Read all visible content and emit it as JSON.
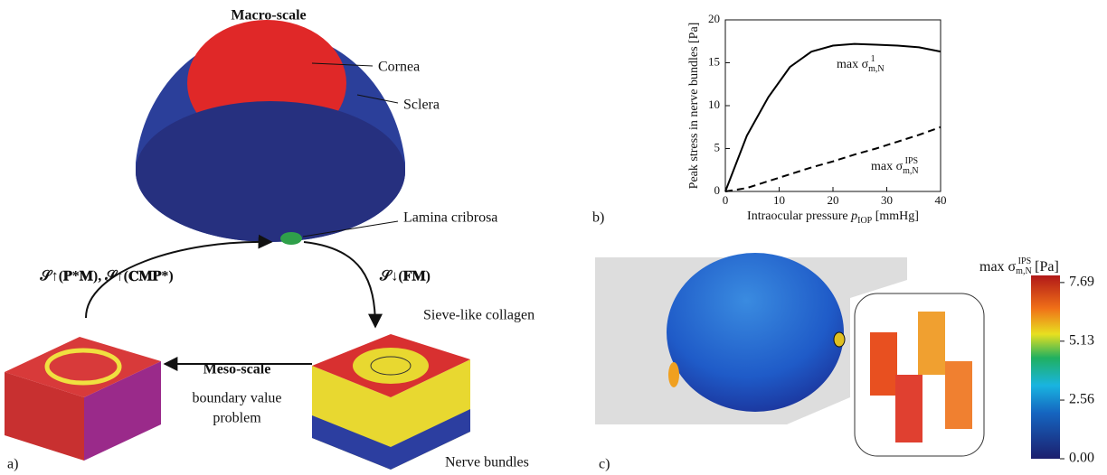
{
  "panel_a": {
    "label": "a)",
    "macro_title": "Macro-scale",
    "cornea": "Cornea",
    "sclera": "Sclera",
    "lamina": "Lamina cribrosa",
    "upscale": "𝒮↑(𝐏*𝐌), 𝒮↑(𝐂𝐌𝐏*)",
    "downscale": "𝒮↓(𝐅𝐌)",
    "collagen": "Sieve-like collagen",
    "meso_title": "Meso-scale",
    "bvp": [
      "boundary value",
      "problem"
    ],
    "nerve": "Nerve bundles"
  },
  "chart_data": {
    "type": "line",
    "panel_label": "b)",
    "ylabel": "Peak stress in nerve bundles [Pa]",
    "xlabel": {
      "text": "Intraocular pressure ",
      "var": "p",
      "sub": "IOP",
      "unit": " [mmHg]"
    },
    "x": [
      0,
      4,
      8,
      12,
      16,
      20,
      24,
      28,
      32,
      36,
      40
    ],
    "series": [
      {
        "name": {
          "text": "max σ",
          "sub": "m,N",
          "sup": "1"
        },
        "color": "#000",
        "dash": "solid",
        "values": [
          0,
          6.5,
          11,
          14.5,
          16.3,
          17,
          17.2,
          17.1,
          17,
          16.8,
          16.3
        ]
      },
      {
        "name": {
          "text": "max σ",
          "sub": "m,N",
          "sup": "IPS"
        },
        "color": "#000",
        "dash": "dashed",
        "values": [
          0,
          0.4,
          1.2,
          2,
          2.8,
          3.5,
          4.3,
          5,
          5.8,
          6.6,
          7.5
        ]
      }
    ],
    "xlim": [
      0,
      40
    ],
    "ylim": [
      0,
      20
    ],
    "xticks": [
      0,
      10,
      20,
      30,
      40
    ],
    "yticks": [
      0,
      5,
      10,
      15,
      20
    ]
  },
  "panel_c": {
    "label": "c)",
    "colorbar": {
      "title": {
        "text": "max σ",
        "sub": "m,N",
        "sup": "IPS",
        "unit": " [Pa]"
      },
      "lim": [
        0,
        8
      ],
      "ticks": [
        7.69,
        5.13,
        2.56,
        {
          "value": 0,
          "label": "0.00"
        }
      ]
    }
  }
}
